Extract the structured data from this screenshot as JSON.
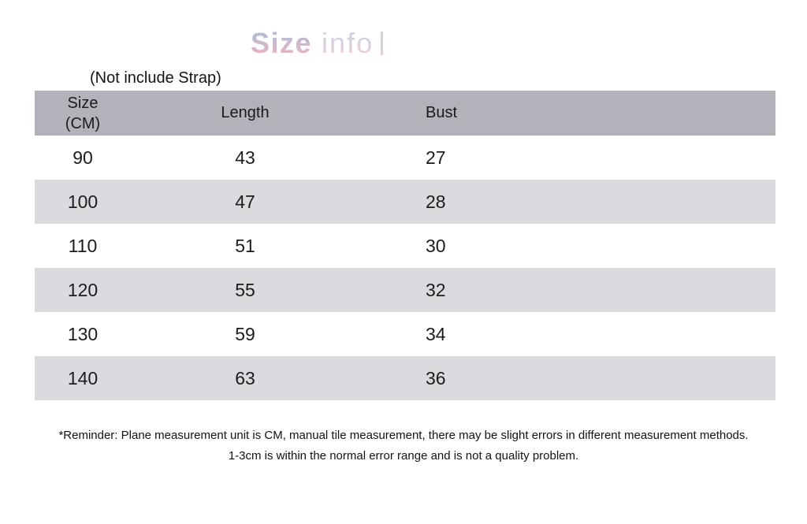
{
  "title": {
    "bold": "Size",
    "light": "info"
  },
  "note": "(Not include Strap)",
  "chart_data": {
    "type": "table",
    "title": "Size info",
    "note": "(Not include Strap)",
    "unit": "CM",
    "columns": [
      [
        "Size",
        "(CM)"
      ],
      [
        "Length"
      ],
      [
        "Bust"
      ]
    ],
    "rows": [
      [
        90,
        43,
        27
      ],
      [
        100,
        47,
        28
      ],
      [
        110,
        51,
        30
      ],
      [
        120,
        55,
        32
      ],
      [
        130,
        59,
        34
      ],
      [
        140,
        63,
        36
      ]
    ],
    "footnote_line1": "*Reminder: Plane measurement unit is CM, manual tile measurement, there may be slight errors in different measurement methods.",
    "footnote_line2": "1-3cm is within the normal error range and is not a quality problem."
  },
  "colors": {
    "header_bg": "#b2b2ba",
    "stripe_bg": "#d9dbde",
    "title_gradient_top": "#a9bedb",
    "title_gradient_bottom": "#ecb2c0",
    "text": "#1c1c1c",
    "background": "#ffffff"
  }
}
